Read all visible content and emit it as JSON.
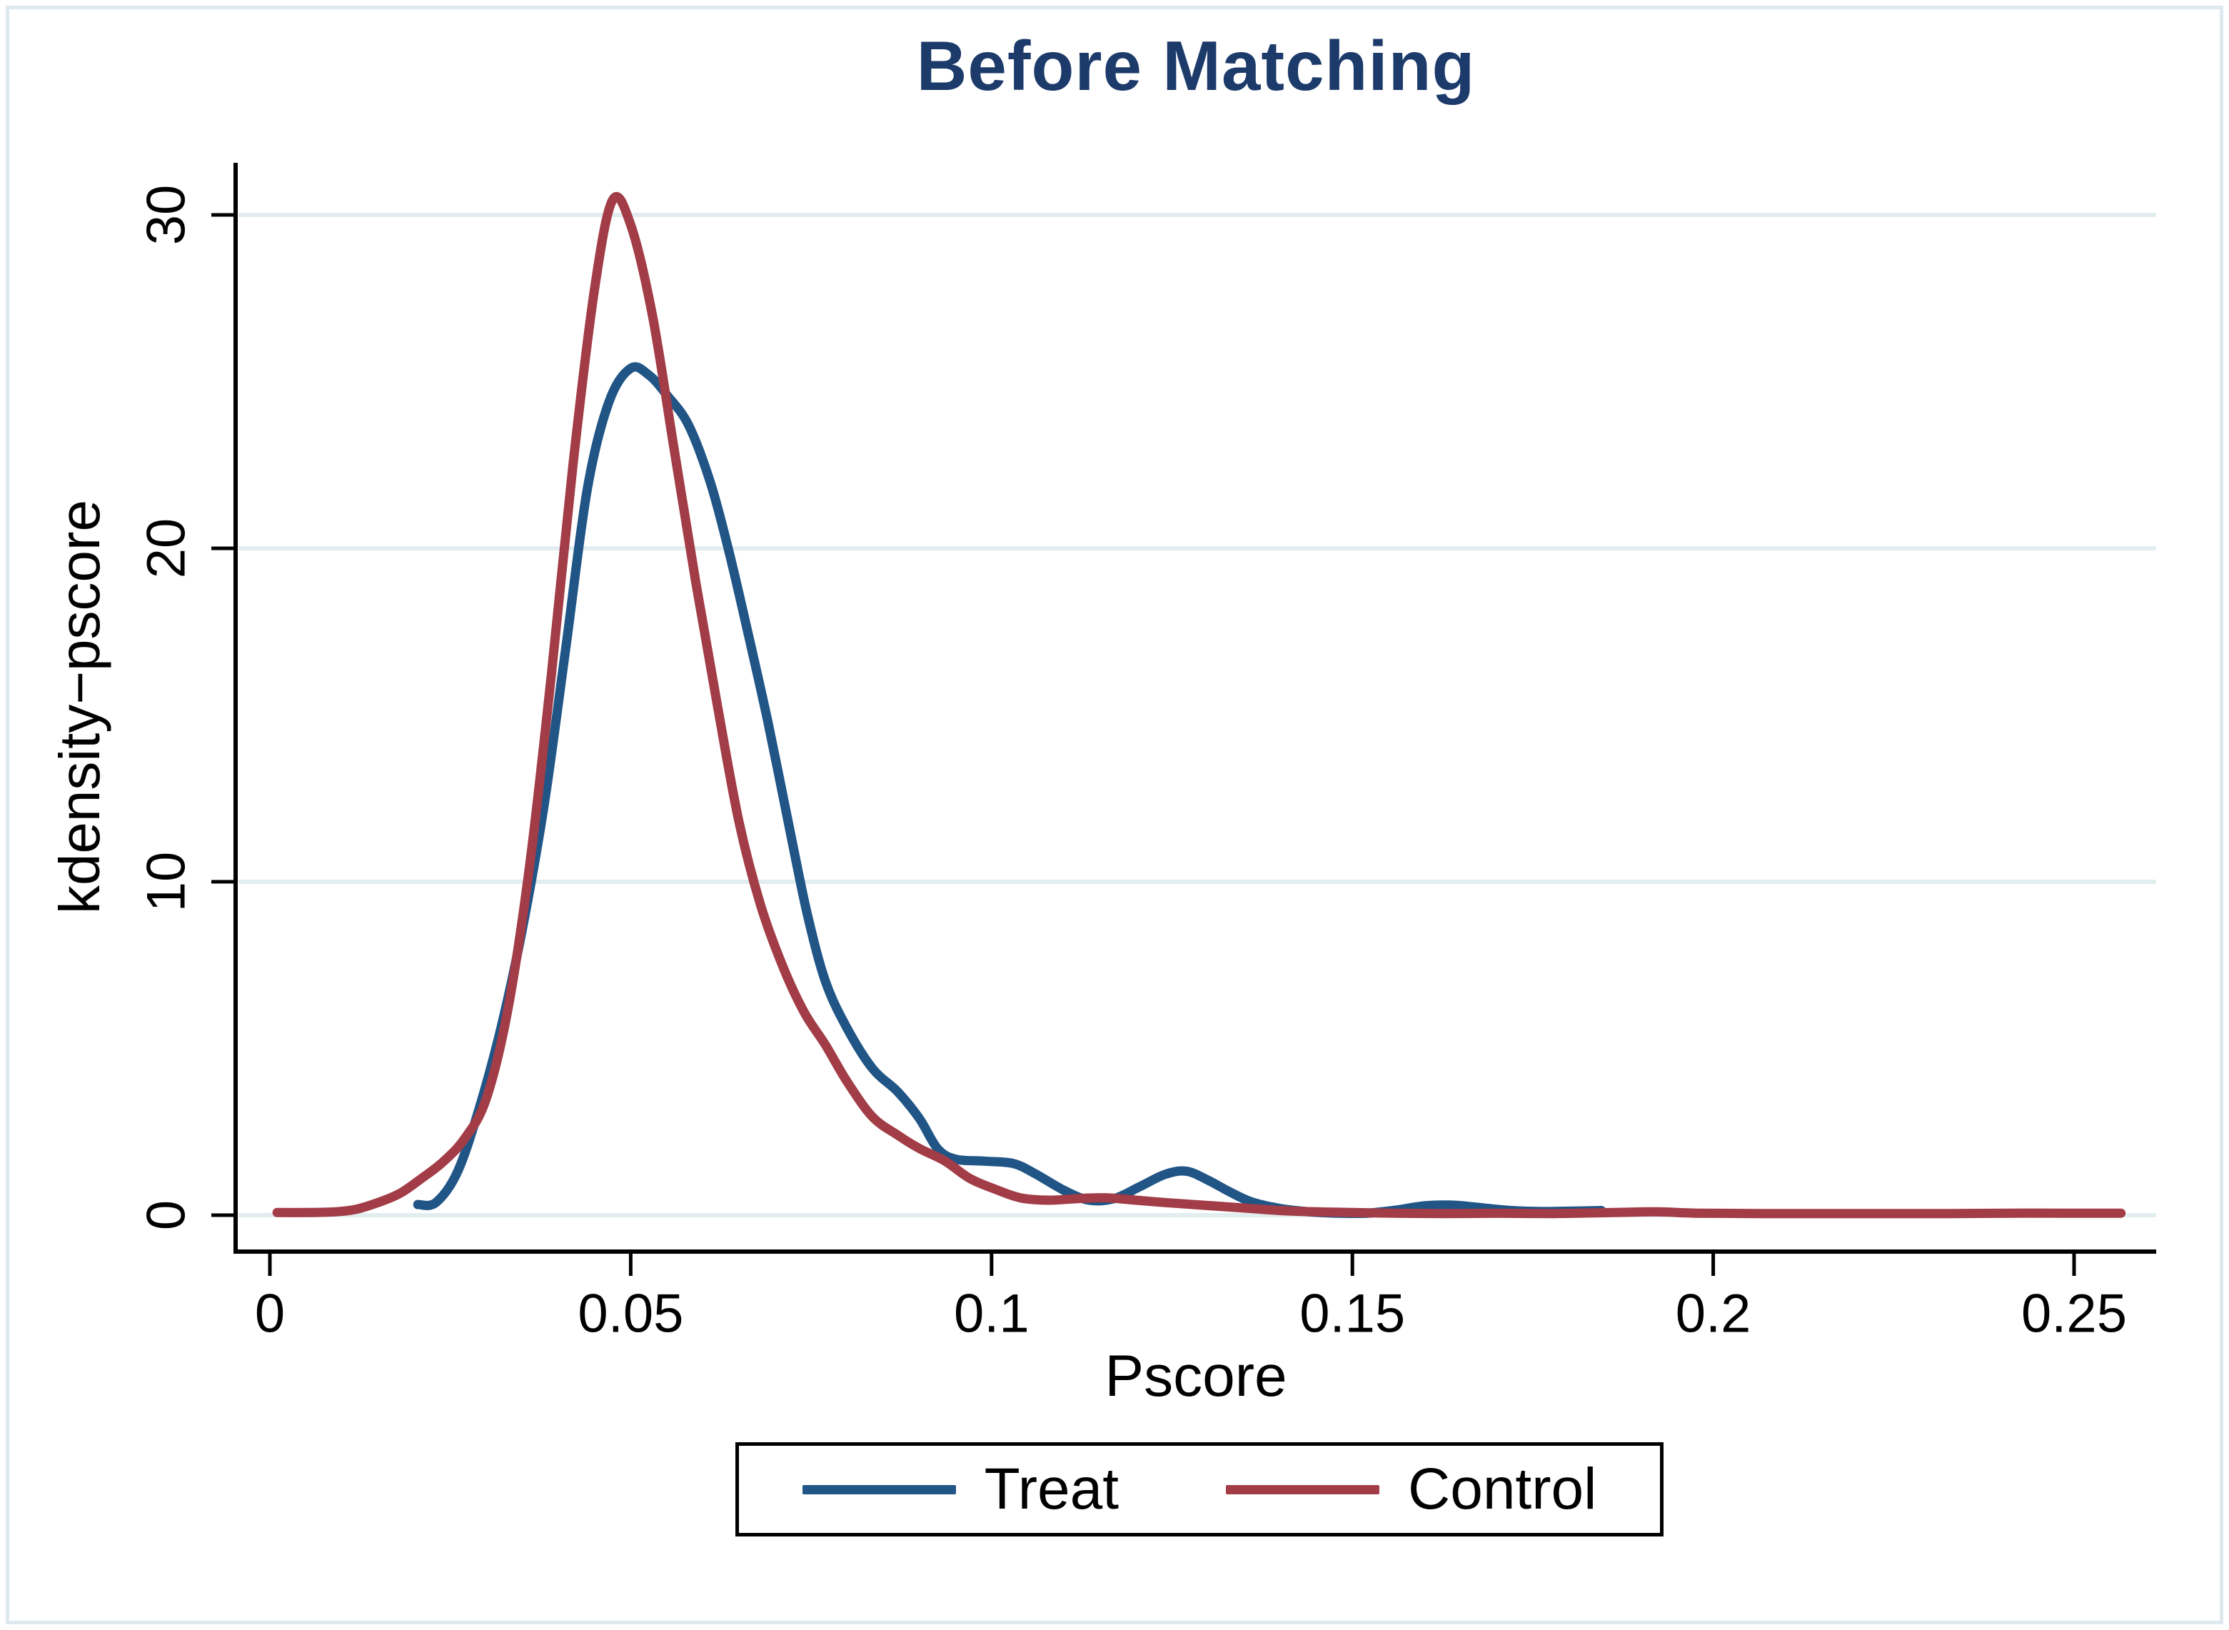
{
  "title": {
    "text": "Before Matching",
    "color": "#1c3a6a"
  },
  "axes": {
    "x": {
      "label": "Pscore"
    },
    "y": {
      "label": "kdensity−pscore"
    }
  },
  "legend": {
    "items": [
      {
        "label": "Treat",
        "color": "#205586"
      },
      {
        "label": "Control",
        "color": "#a23c46"
      }
    ]
  },
  "colors": {
    "treat_line": "#205586",
    "control_line": "#a23c46",
    "title_navy": "#1c3a6a",
    "gridline": "#e2edf0",
    "axis": "#000000",
    "frame_border": "#dde9ef"
  },
  "chart_data": {
    "type": "line",
    "title": "Before Matching",
    "xlabel": "Pscore",
    "ylabel": "kdensity−pscore",
    "xlim": [
      0,
      0.26
    ],
    "ylim": [
      0,
      31.5
    ],
    "xticks": [
      0,
      0.05,
      0.1,
      0.15,
      0.2,
      0.25
    ],
    "xtick_labels": [
      "0",
      "0.05",
      "0.1",
      "0.15",
      "0.2",
      "0.25"
    ],
    "yticks": [
      0,
      10,
      20,
      30
    ],
    "ytick_labels": [
      "0",
      "10",
      "20",
      "30"
    ],
    "grid": "horizontal-only",
    "legend_position": "bottom-center",
    "series": [
      {
        "name": "Treat",
        "color": "#205586",
        "points": [
          [
            0.0205,
            0.32
          ],
          [
            0.023,
            0.38
          ],
          [
            0.026,
            1.3
          ],
          [
            0.029,
            3.2
          ],
          [
            0.032,
            5.6
          ],
          [
            0.035,
            8.6
          ],
          [
            0.038,
            12.3
          ],
          [
            0.041,
            17.0
          ],
          [
            0.044,
            21.8
          ],
          [
            0.047,
            24.4
          ],
          [
            0.05,
            25.4
          ],
          [
            0.0525,
            25.2
          ],
          [
            0.055,
            24.6
          ],
          [
            0.058,
            23.7
          ],
          [
            0.061,
            22.0
          ],
          [
            0.0635,
            20.0
          ],
          [
            0.066,
            17.7
          ],
          [
            0.069,
            14.8
          ],
          [
            0.072,
            11.6
          ],
          [
            0.0745,
            9.0
          ],
          [
            0.077,
            7.0
          ],
          [
            0.08,
            5.6
          ],
          [
            0.0835,
            4.4
          ],
          [
            0.087,
            3.7
          ],
          [
            0.09,
            2.9
          ],
          [
            0.0925,
            2.0
          ],
          [
            0.095,
            1.68
          ],
          [
            0.099,
            1.62
          ],
          [
            0.103,
            1.55
          ],
          [
            0.106,
            1.25
          ],
          [
            0.11,
            0.75
          ],
          [
            0.1135,
            0.45
          ],
          [
            0.117,
            0.5
          ],
          [
            0.1205,
            0.85
          ],
          [
            0.124,
            1.22
          ],
          [
            0.127,
            1.32
          ],
          [
            0.13,
            1.05
          ],
          [
            0.133,
            0.7
          ],
          [
            0.136,
            0.4
          ],
          [
            0.14,
            0.2
          ],
          [
            0.144,
            0.1
          ],
          [
            0.148,
            0.06
          ],
          [
            0.152,
            0.06
          ],
          [
            0.156,
            0.15
          ],
          [
            0.16,
            0.28
          ],
          [
            0.164,
            0.3
          ],
          [
            0.168,
            0.22
          ],
          [
            0.172,
            0.14
          ],
          [
            0.176,
            0.11
          ],
          [
            0.18,
            0.12
          ],
          [
            0.1845,
            0.14
          ]
        ]
      },
      {
        "name": "Control",
        "color": "#a23c46",
        "points": [
          [
            0.001,
            0.08
          ],
          [
            0.005,
            0.08
          ],
          [
            0.009,
            0.1
          ],
          [
            0.012,
            0.18
          ],
          [
            0.015,
            0.38
          ],
          [
            0.018,
            0.65
          ],
          [
            0.021,
            1.1
          ],
          [
            0.024,
            1.6
          ],
          [
            0.027,
            2.3
          ],
          [
            0.03,
            3.5
          ],
          [
            0.033,
            6.2
          ],
          [
            0.036,
            10.5
          ],
          [
            0.039,
            16.2
          ],
          [
            0.042,
            22.5
          ],
          [
            0.045,
            27.8
          ],
          [
            0.0475,
            30.45
          ],
          [
            0.05,
            29.7
          ],
          [
            0.053,
            27.0
          ],
          [
            0.056,
            23.0
          ],
          [
            0.059,
            19.0
          ],
          [
            0.062,
            15.3
          ],
          [
            0.065,
            11.8
          ],
          [
            0.068,
            9.3
          ],
          [
            0.071,
            7.5
          ],
          [
            0.074,
            6.1
          ],
          [
            0.077,
            5.1
          ],
          [
            0.08,
            4.0
          ],
          [
            0.0835,
            2.95
          ],
          [
            0.087,
            2.4
          ],
          [
            0.09,
            2.0
          ],
          [
            0.0935,
            1.63
          ],
          [
            0.097,
            1.1
          ],
          [
            0.1005,
            0.78
          ],
          [
            0.104,
            0.52
          ],
          [
            0.108,
            0.45
          ],
          [
            0.112,
            0.5
          ],
          [
            0.116,
            0.52
          ],
          [
            0.12,
            0.45
          ],
          [
            0.124,
            0.38
          ],
          [
            0.128,
            0.32
          ],
          [
            0.132,
            0.26
          ],
          [
            0.136,
            0.2
          ],
          [
            0.14,
            0.14
          ],
          [
            0.145,
            0.1
          ],
          [
            0.15,
            0.08
          ],
          [
            0.156,
            0.06
          ],
          [
            0.163,
            0.05
          ],
          [
            0.17,
            0.06
          ],
          [
            0.178,
            0.05
          ],
          [
            0.186,
            0.08
          ],
          [
            0.192,
            0.1
          ],
          [
            0.198,
            0.06
          ],
          [
            0.206,
            0.05
          ],
          [
            0.215,
            0.05
          ],
          [
            0.224,
            0.05
          ],
          [
            0.233,
            0.05
          ],
          [
            0.241,
            0.06
          ],
          [
            0.249,
            0.06
          ],
          [
            0.2565,
            0.06
          ]
        ]
      }
    ]
  }
}
